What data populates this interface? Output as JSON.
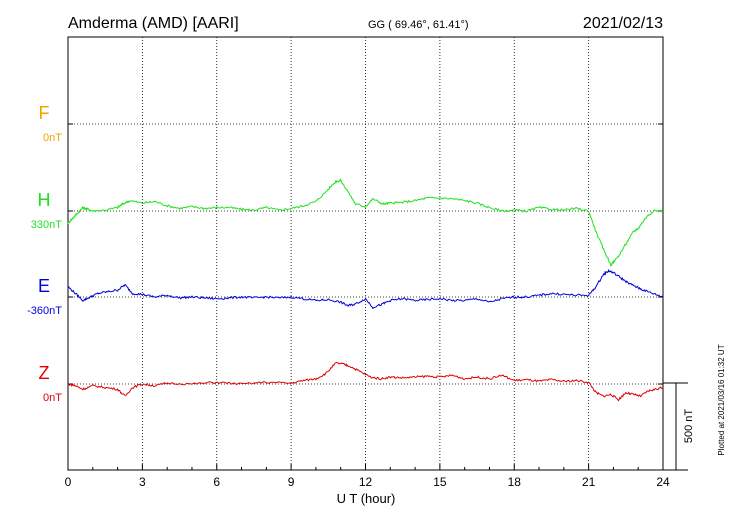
{
  "header": {
    "station": "Amderma (AMD)  [AARI]",
    "coords": "GG ( 69.46°,  61.41°)",
    "date": "2021/02/13"
  },
  "footer": {
    "xlabel": "U T (hour)",
    "scale_label": "500 nT",
    "plotted": "Plotted at 2021/03/16 01:32 UT"
  },
  "chart_data": {
    "type": "line",
    "title": "Amderma (AMD)  [AARI]",
    "xlabel": "U T (hour)",
    "ylabel": "",
    "xlim": [
      0,
      24
    ],
    "xticks": [
      "0",
      "3",
      "6",
      "9",
      "12",
      "15",
      "18",
      "21",
      "24"
    ],
    "grid": true,
    "scale_bar_nT": 500,
    "series": [
      {
        "name": "F",
        "baseline": "0nT",
        "color": "#f5a000",
        "offset_nT": 0,
        "x": [],
        "values": []
      },
      {
        "name": "H",
        "baseline": "330nT",
        "color": "#1fe01f",
        "offset_nT": 0,
        "x": [
          0,
          0.2,
          0.4,
          0.6,
          0.8,
          1.0,
          1.5,
          2.0,
          2.2,
          2.5,
          3.0,
          3.5,
          4.0,
          4.5,
          5.0,
          5.5,
          6.0,
          6.5,
          7.0,
          7.5,
          8.0,
          8.5,
          9.0,
          9.5,
          10.0,
          10.4,
          10.8,
          11.0,
          11.3,
          11.6,
          12.0,
          12.3,
          12.7,
          13.0,
          13.5,
          14.0,
          14.5,
          15.0,
          15.5,
          16.0,
          16.5,
          17.0,
          17.5,
          18.0,
          18.5,
          19.0,
          19.5,
          20.0,
          20.5,
          21.0,
          21.3,
          21.6,
          21.9,
          22.2,
          22.5,
          22.8,
          23.0,
          23.3,
          23.6,
          24.0
        ],
        "values": [
          -70,
          -40,
          -10,
          20,
          10,
          0,
          5,
          20,
          40,
          60,
          45,
          55,
          30,
          15,
          25,
          15,
          20,
          20,
          10,
          5,
          20,
          5,
          15,
          30,
          55,
          110,
          170,
          175,
          110,
          40,
          25,
          70,
          40,
          45,
          50,
          60,
          75,
          75,
          70,
          60,
          45,
          20,
          0,
          5,
          0,
          20,
          10,
          5,
          15,
          0,
          -120,
          -220,
          -310,
          -260,
          -190,
          -120,
          -100,
          -40,
          0,
          0
        ]
      },
      {
        "name": "E",
        "baseline": "-360nT",
        "color": "#0000d8",
        "offset_nT": 0,
        "x": [
          0,
          0.3,
          0.6,
          0.9,
          1.2,
          1.6,
          2.0,
          2.3,
          2.6,
          3.0,
          3.5,
          4.0,
          4.5,
          5.0,
          5.5,
          6.0,
          6.5,
          7.0,
          7.5,
          8.0,
          8.5,
          9.0,
          9.5,
          10.0,
          10.5,
          11.0,
          11.3,
          11.6,
          12.0,
          12.3,
          12.7,
          13.0,
          13.5,
          14.0,
          14.5,
          15.0,
          15.5,
          16.0,
          16.5,
          17.0,
          17.5,
          18.0,
          18.5,
          19.0,
          19.5,
          20.0,
          20.5,
          21.0,
          21.3,
          21.6,
          21.8,
          22.0,
          22.3,
          22.6,
          22.9,
          23.2,
          23.6,
          24.0
        ],
        "values": [
          60,
          20,
          -20,
          0,
          20,
          30,
          40,
          70,
          20,
          15,
          0,
          10,
          -5,
          0,
          -5,
          -10,
          -5,
          0,
          -5,
          0,
          -5,
          0,
          -10,
          -20,
          -15,
          -30,
          -50,
          -40,
          -10,
          -60,
          -40,
          -20,
          -10,
          -20,
          -15,
          -10,
          -20,
          -20,
          -10,
          -30,
          -10,
          0,
          0,
          10,
          20,
          15,
          10,
          10,
          60,
          130,
          150,
          140,
          110,
          80,
          60,
          40,
          20,
          0
        ]
      },
      {
        "name": "Z",
        "baseline": "0nT",
        "color": "#e00000",
        "offset_nT": 0,
        "x": [
          0,
          0.3,
          0.6,
          1.0,
          1.5,
          2.0,
          2.3,
          2.6,
          3.0,
          3.5,
          4.0,
          5.0,
          6.0,
          7.0,
          8.0,
          9.0,
          9.5,
          10.0,
          10.4,
          10.8,
          11.1,
          11.4,
          11.8,
          12.2,
          12.6,
          13.0,
          13.5,
          14.0,
          14.5,
          15.0,
          15.5,
          16.0,
          16.5,
          17.0,
          17.5,
          18.0,
          18.5,
          19.0,
          19.5,
          20.0,
          20.5,
          21.0,
          21.3,
          21.6,
          21.9,
          22.2,
          22.5,
          22.8,
          23.1,
          23.4,
          23.7,
          24.0
        ],
        "values": [
          0,
          -10,
          -30,
          -10,
          -20,
          -30,
          -70,
          -20,
          0,
          -10,
          5,
          0,
          10,
          0,
          10,
          5,
          20,
          30,
          60,
          120,
          115,
          100,
          70,
          40,
          30,
          40,
          35,
          40,
          45,
          40,
          50,
          30,
          40,
          30,
          50,
          20,
          25,
          15,
          25,
          15,
          20,
          10,
          -50,
          -70,
          -60,
          -90,
          -50,
          -60,
          -70,
          -40,
          -30,
          -20
        ]
      }
    ]
  }
}
